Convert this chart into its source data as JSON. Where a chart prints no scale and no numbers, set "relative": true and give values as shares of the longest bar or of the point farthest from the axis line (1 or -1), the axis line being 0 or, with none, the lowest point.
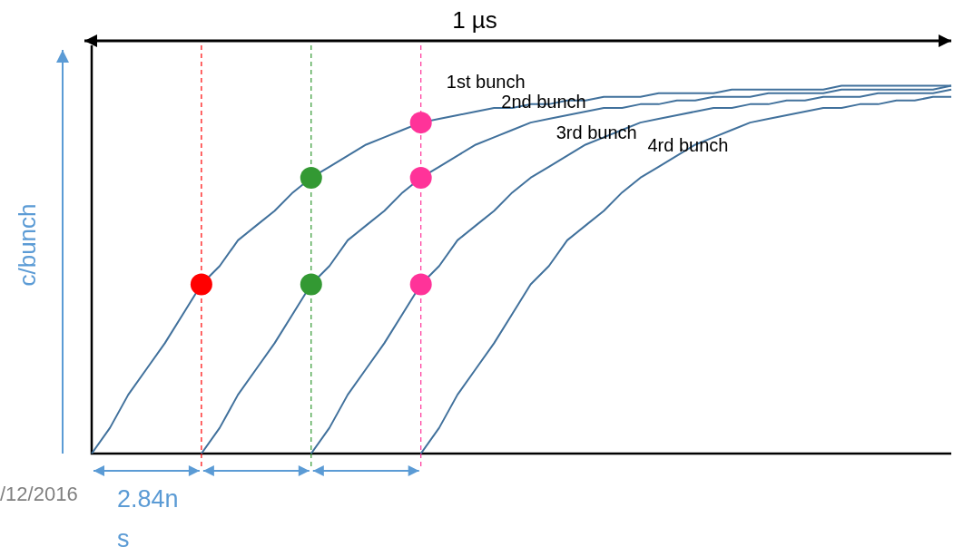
{
  "chart_data": {
    "type": "line",
    "relative": true,
    "ylabel": "c/bunch",
    "legend": false,
    "tick_labels": false,
    "marker": "none",
    "annotations": [
      "1 µs",
      "/12/2016",
      "2.84ns"
    ],
    "categories": [
      null,
      null,
      null,
      null,
      null,
      null,
      null,
      null,
      null,
      null,
      null,
      null,
      null,
      null,
      null,
      null,
      null,
      null,
      null,
      null,
      null,
      null,
      null,
      null,
      null,
      null,
      null,
      null,
      null,
      null,
      null,
      null,
      null,
      null,
      null,
      null,
      null,
      null,
      null,
      null,
      null,
      null,
      null,
      null,
      null,
      null,
      null,
      null
    ],
    "series": [
      {
        "name": "1st bunch",
        "color": "#41719c",
        "values": [
          0,
          0.07,
          0.16,
          0.23,
          0.3,
          0.38,
          0.46,
          0.51,
          0.58,
          0.62,
          0.66,
          0.71,
          0.75,
          0.78,
          0.81,
          0.84,
          0.86,
          0.88,
          0.9,
          0.91,
          0.92,
          0.93,
          0.94,
          0.94,
          0.95,
          0.95,
          0.96,
          0.96,
          0.97,
          0.97,
          0.97,
          0.98,
          0.98,
          0.98,
          0.98,
          0.99,
          0.99,
          0.99,
          0.99,
          0.99,
          0.99,
          1,
          1,
          1,
          1,
          1,
          1,
          1
        ]
      },
      {
        "name": "2nd bunch",
        "color": "#41719c",
        "values": [
          null,
          null,
          null,
          null,
          null,
          null,
          0,
          0.07,
          0.16,
          0.23,
          0.3,
          0.38,
          0.46,
          0.51,
          0.58,
          0.62,
          0.66,
          0.71,
          0.75,
          0.78,
          0.81,
          0.84,
          0.86,
          0.88,
          0.9,
          0.91,
          0.92,
          0.93,
          0.94,
          0.94,
          0.95,
          0.95,
          0.96,
          0.96,
          0.97,
          0.97,
          0.97,
          0.98,
          0.98,
          0.98,
          0.98,
          0.99,
          0.99,
          0.99,
          0.99,
          0.99,
          0.99,
          1
        ]
      },
      {
        "name": "3rd bunch",
        "color": "#41719c",
        "values": [
          null,
          null,
          null,
          null,
          null,
          null,
          null,
          null,
          null,
          null,
          null,
          null,
          0,
          0.07,
          0.16,
          0.23,
          0.3,
          0.38,
          0.46,
          0.51,
          0.58,
          0.62,
          0.66,
          0.71,
          0.75,
          0.78,
          0.81,
          0.84,
          0.86,
          0.88,
          0.9,
          0.91,
          0.92,
          0.93,
          0.94,
          0.94,
          0.95,
          0.95,
          0.96,
          0.96,
          0.97,
          0.97,
          0.97,
          0.98,
          0.98,
          0.98,
          0.98,
          0.99
        ]
      },
      {
        "name": "4rd bunch",
        "color": "#41719c",
        "values": [
          null,
          null,
          null,
          null,
          null,
          null,
          null,
          null,
          null,
          null,
          null,
          null,
          null,
          null,
          null,
          null,
          null,
          null,
          0,
          0.07,
          0.16,
          0.23,
          0.3,
          0.38,
          0.46,
          0.51,
          0.58,
          0.62,
          0.66,
          0.71,
          0.75,
          0.78,
          0.81,
          0.84,
          0.86,
          0.88,
          0.9,
          0.91,
          0.92,
          0.93,
          0.94,
          0.94,
          0.95,
          0.95,
          0.96,
          0.96,
          0.97,
          0.97
        ]
      }
    ]
  }
}
